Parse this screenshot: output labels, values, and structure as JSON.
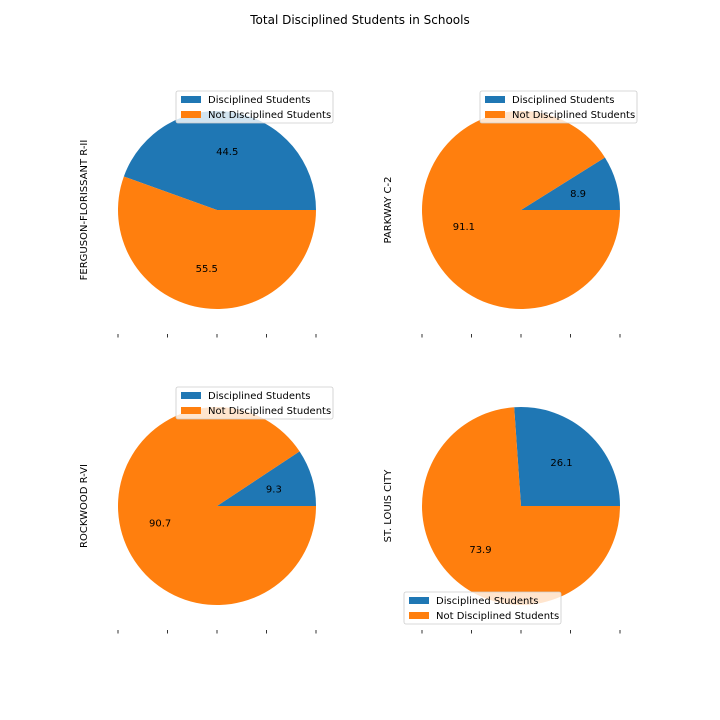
{
  "figure": {
    "title": "Total Disciplined Students in Schools"
  },
  "legend_labels": [
    "Disciplined Students",
    "Not Disciplined Students"
  ],
  "colors": {
    "disciplined": "#1f77b4",
    "not_disciplined": "#ff7f0e"
  },
  "chart_data": [
    {
      "type": "pie",
      "ylabel": "FERGUSON-FLORISSANT R-II",
      "labels": [
        "Disciplined Students",
        "Not Disciplined Students"
      ],
      "values": [
        44.5,
        55.5
      ],
      "value_labels": [
        "44.5",
        "55.5"
      ],
      "legend_position": "top-right"
    },
    {
      "type": "pie",
      "ylabel": "PARKWAY C-2",
      "labels": [
        "Disciplined Students",
        "Not Disciplined Students"
      ],
      "values": [
        8.9,
        91.1
      ],
      "value_labels": [
        "8.9",
        "91.1"
      ],
      "legend_position": "top-right"
    },
    {
      "type": "pie",
      "ylabel": "ROCKWOOD R-VI",
      "labels": [
        "Disciplined Students",
        "Not Disciplined Students"
      ],
      "values": [
        9.3,
        90.7
      ],
      "value_labels": [
        "9.3",
        "90.7"
      ],
      "legend_position": "top-right"
    },
    {
      "type": "pie",
      "ylabel": "ST. LOUIS CITY",
      "labels": [
        "Disciplined Students",
        "Not Disciplined Students"
      ],
      "values": [
        26.1,
        73.9
      ],
      "value_labels": [
        "26.1",
        "73.9"
      ],
      "legend_position": "bottom-center"
    }
  ]
}
